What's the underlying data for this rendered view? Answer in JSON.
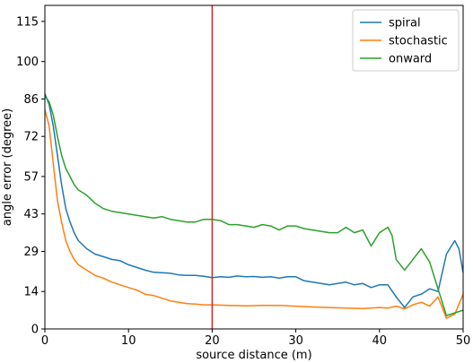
{
  "chart_data": {
    "type": "line",
    "xlabel": "source distance (m)",
    "ylabel": "angle error (degree)",
    "xlim": [
      0,
      50
    ],
    "ylim": [
      0,
      121
    ],
    "xticks": [
      0,
      10,
      20,
      30,
      40,
      50
    ],
    "yticks": [
      0,
      14,
      29,
      43,
      57,
      72,
      86,
      100,
      115
    ],
    "grid": false,
    "legend_position": "top-right",
    "reference_line": {
      "x": 20,
      "color": "#d62728"
    },
    "series": [
      {
        "name": "spiral",
        "color": "#1f77b4",
        "points": [
          [
            0,
            88
          ],
          [
            0.5,
            84
          ],
          [
            1,
            76
          ],
          [
            1.5,
            65
          ],
          [
            2,
            54
          ],
          [
            2.5,
            45
          ],
          [
            3,
            40
          ],
          [
            3.5,
            36
          ],
          [
            4,
            33
          ],
          [
            5,
            30
          ],
          [
            6,
            28
          ],
          [
            7,
            27
          ],
          [
            8,
            26
          ],
          [
            9,
            25.5
          ],
          [
            10,
            24
          ],
          [
            11,
            23
          ],
          [
            12,
            22
          ],
          [
            13,
            21.2
          ],
          [
            14,
            21
          ],
          [
            15,
            20.8
          ],
          [
            16,
            20.2
          ],
          [
            17,
            20
          ],
          [
            18,
            20
          ],
          [
            19,
            19.7
          ],
          [
            20,
            19.2
          ],
          [
            21,
            19.5
          ],
          [
            22,
            19.3
          ],
          [
            23,
            19.8
          ],
          [
            24,
            19.5
          ],
          [
            25,
            19.6
          ],
          [
            26,
            19.3
          ],
          [
            27,
            19.5
          ],
          [
            28,
            19
          ],
          [
            29,
            19.5
          ],
          [
            30,
            19.5
          ],
          [
            31,
            18
          ],
          [
            32,
            17.5
          ],
          [
            33,
            17
          ],
          [
            34,
            16.5
          ],
          [
            35,
            17
          ],
          [
            36,
            17.5
          ],
          [
            37,
            16.5
          ],
          [
            38,
            17
          ],
          [
            39,
            15.5
          ],
          [
            40,
            16.5
          ],
          [
            41,
            16.5
          ],
          [
            42,
            12
          ],
          [
            43,
            8
          ],
          [
            44,
            12
          ],
          [
            45,
            13
          ],
          [
            46,
            15
          ],
          [
            47,
            14
          ],
          [
            48,
            28
          ],
          [
            49,
            33
          ],
          [
            49.5,
            30
          ],
          [
            50,
            21
          ]
        ]
      },
      {
        "name": "stochastic",
        "color": "#ff7f0e",
        "points": [
          [
            0,
            82
          ],
          [
            0.5,
            76
          ],
          [
            1,
            62
          ],
          [
            1.5,
            48
          ],
          [
            2,
            40
          ],
          [
            2.5,
            33
          ],
          [
            3,
            29
          ],
          [
            3.5,
            26
          ],
          [
            4,
            24
          ],
          [
            5,
            22
          ],
          [
            6,
            20
          ],
          [
            7,
            19
          ],
          [
            8,
            17.5
          ],
          [
            9,
            16.5
          ],
          [
            10,
            15.5
          ],
          [
            11,
            14.5
          ],
          [
            12,
            13
          ],
          [
            13,
            12.5
          ],
          [
            14,
            11.5
          ],
          [
            15,
            10.5
          ],
          [
            16,
            10
          ],
          [
            17,
            9.5
          ],
          [
            18,
            9.3
          ],
          [
            19,
            9
          ],
          [
            20,
            9
          ],
          [
            22,
            8.8
          ],
          [
            24,
            8.6
          ],
          [
            26,
            8.8
          ],
          [
            28,
            8.8
          ],
          [
            30,
            8.5
          ],
          [
            32,
            8.2
          ],
          [
            34,
            8
          ],
          [
            36,
            7.8
          ],
          [
            38,
            7.6
          ],
          [
            40,
            8
          ],
          [
            41,
            7.8
          ],
          [
            42,
            8.5
          ],
          [
            43,
            7.5
          ],
          [
            44,
            9
          ],
          [
            45,
            10
          ],
          [
            46,
            8.5
          ],
          [
            47,
            12
          ],
          [
            47.5,
            8
          ],
          [
            48,
            4
          ],
          [
            49,
            5.5
          ],
          [
            50,
            13
          ]
        ]
      },
      {
        "name": "onward",
        "color": "#2ca02c",
        "points": [
          [
            0,
            87
          ],
          [
            0.5,
            85
          ],
          [
            1,
            80
          ],
          [
            1.5,
            72
          ],
          [
            2,
            65
          ],
          [
            2.5,
            60
          ],
          [
            3,
            57
          ],
          [
            3.5,
            54
          ],
          [
            4,
            52
          ],
          [
            5,
            50
          ],
          [
            6,
            47
          ],
          [
            7,
            45
          ],
          [
            8,
            44
          ],
          [
            9,
            43.5
          ],
          [
            10,
            43
          ],
          [
            11,
            42.5
          ],
          [
            12,
            42
          ],
          [
            13,
            41.5
          ],
          [
            14,
            42
          ],
          [
            15,
            41
          ],
          [
            16,
            40.5
          ],
          [
            17,
            40
          ],
          [
            18,
            40
          ],
          [
            19,
            41
          ],
          [
            20,
            41
          ],
          [
            21,
            40.5
          ],
          [
            22,
            39
          ],
          [
            23,
            39
          ],
          [
            24,
            38.5
          ],
          [
            25,
            38
          ],
          [
            26,
            39
          ],
          [
            27,
            38.5
          ],
          [
            28,
            37
          ],
          [
            29,
            38.5
          ],
          [
            30,
            38.5
          ],
          [
            31,
            37.5
          ],
          [
            32,
            37
          ],
          [
            33,
            36.5
          ],
          [
            34,
            36
          ],
          [
            35,
            36
          ],
          [
            36,
            38
          ],
          [
            37,
            36
          ],
          [
            38,
            37
          ],
          [
            39,
            31
          ],
          [
            40,
            36
          ],
          [
            41,
            38
          ],
          [
            41.5,
            35
          ],
          [
            42,
            26
          ],
          [
            43,
            22
          ],
          [
            44,
            26
          ],
          [
            45,
            30
          ],
          [
            46,
            25
          ],
          [
            47,
            15
          ],
          [
            48,
            5
          ],
          [
            49,
            6
          ],
          [
            50,
            7
          ]
        ]
      }
    ]
  }
}
